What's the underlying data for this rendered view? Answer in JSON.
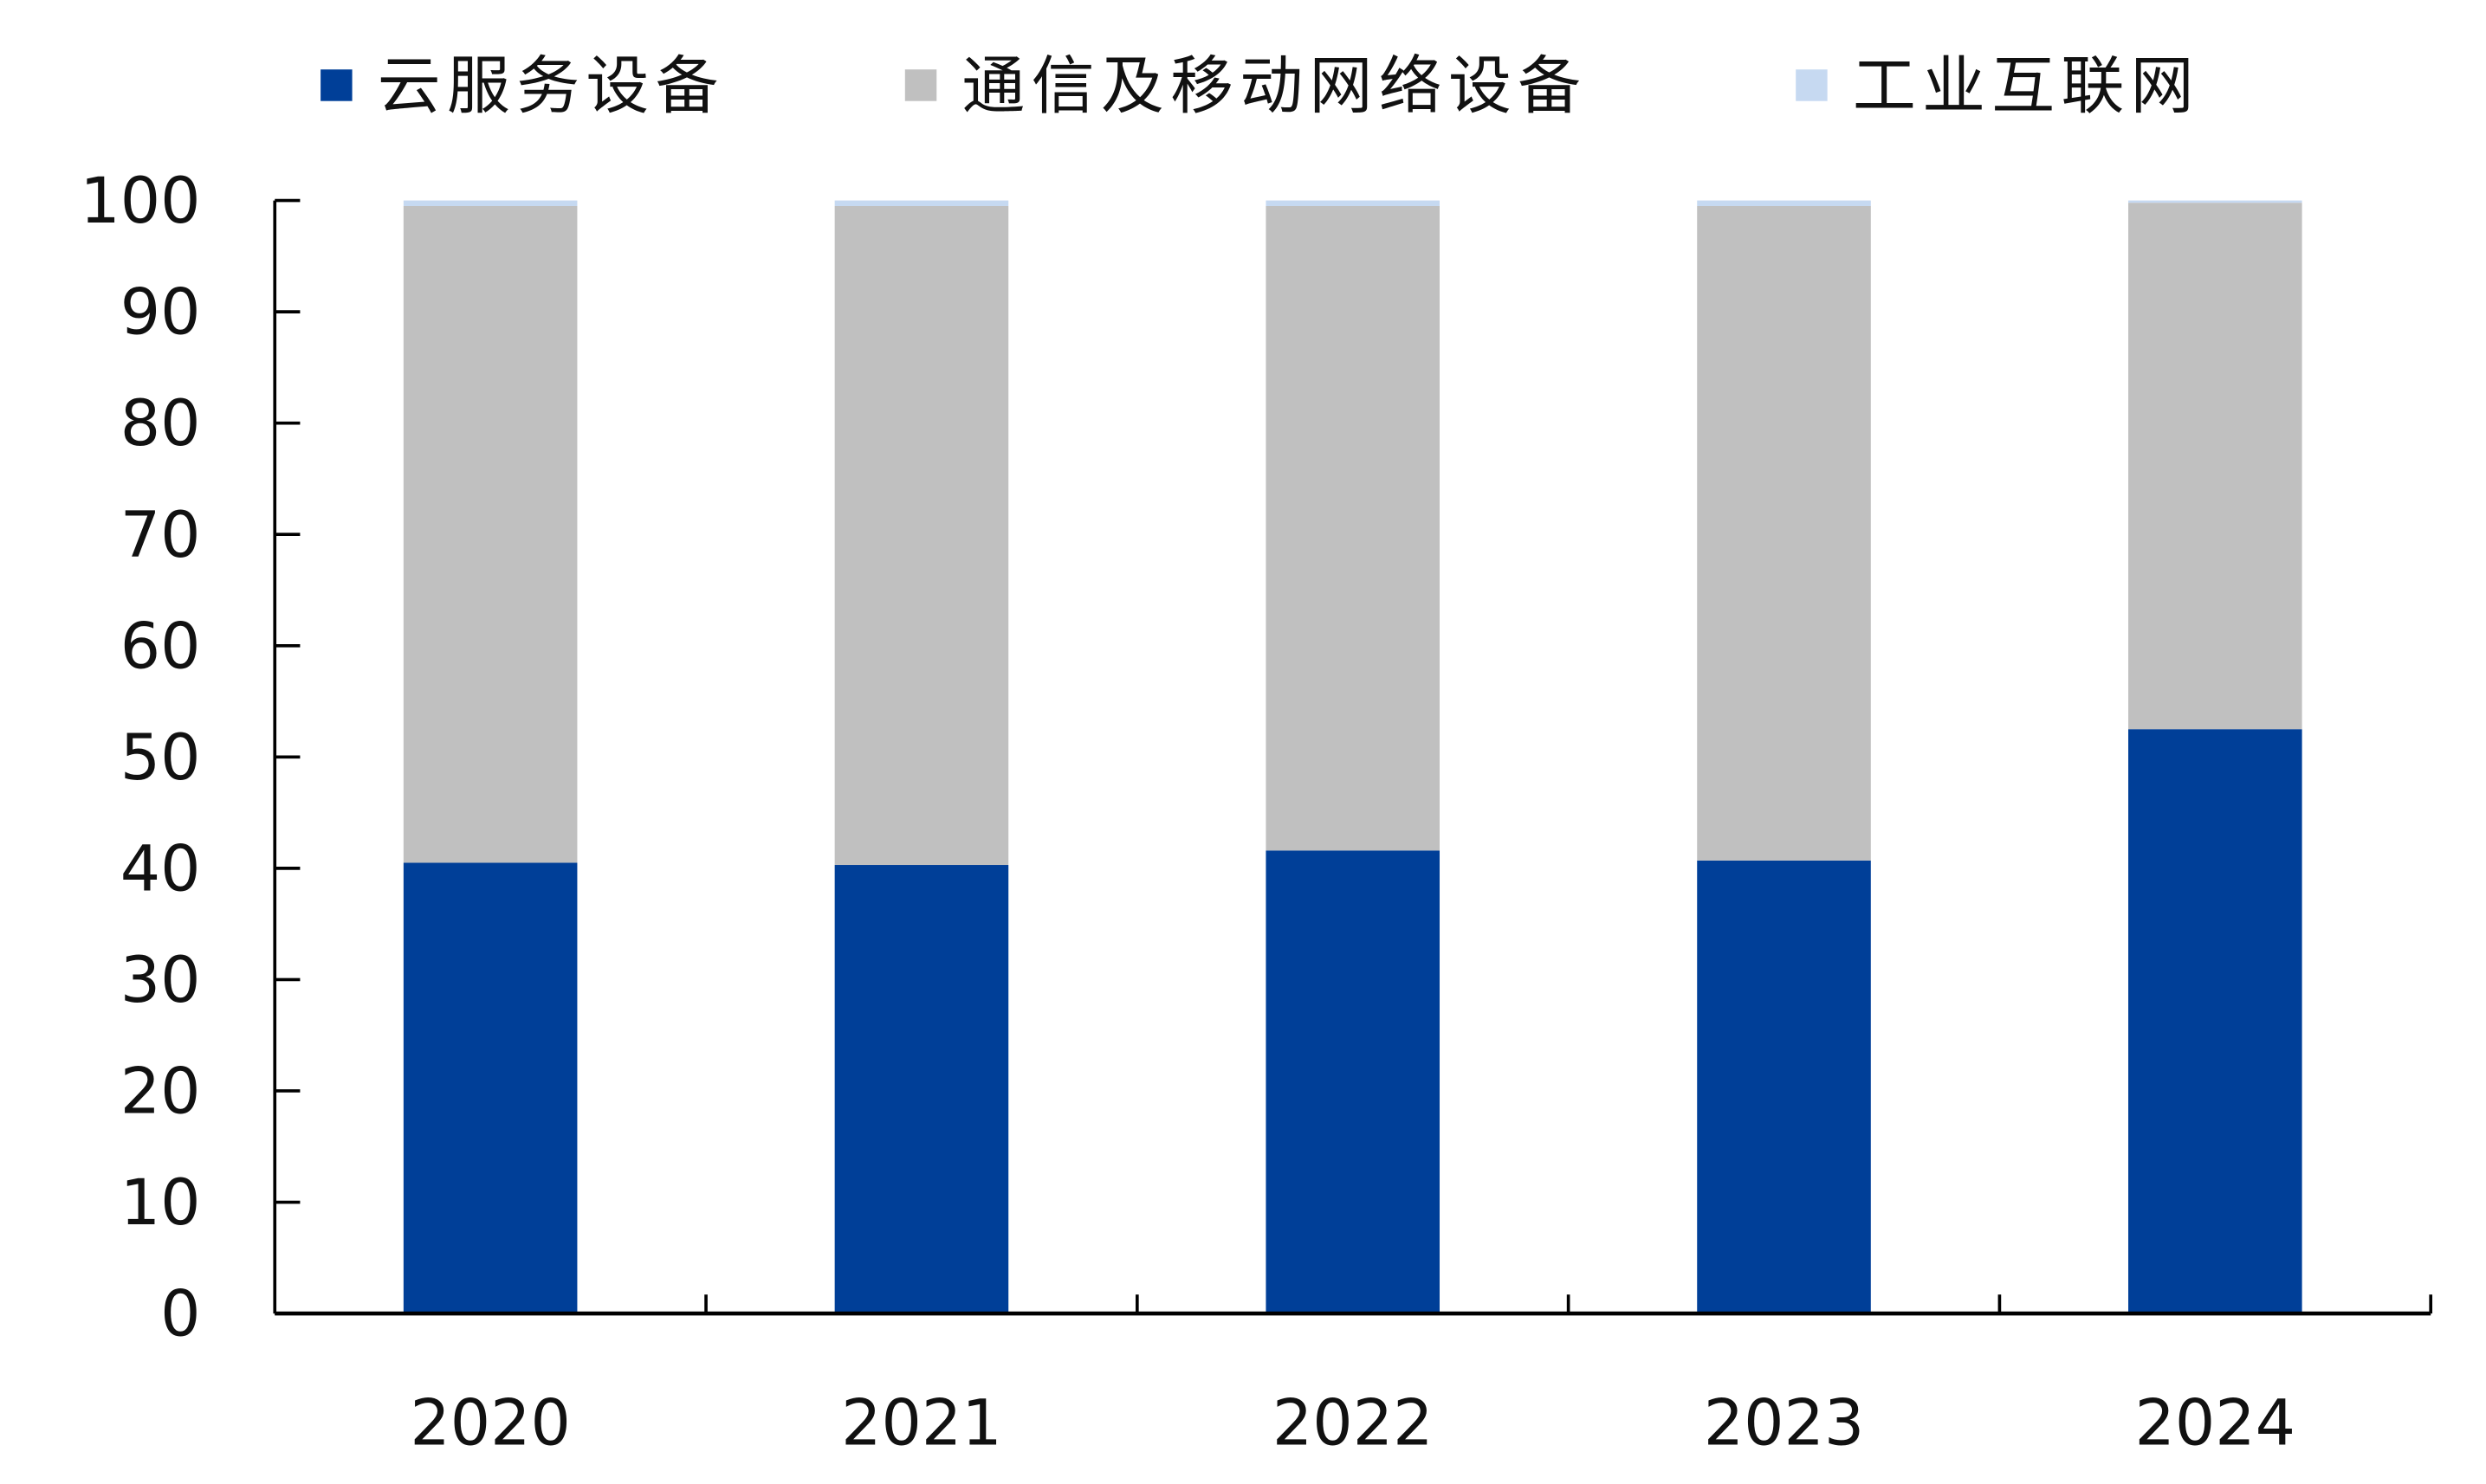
{
  "chart_data": {
    "type": "bar",
    "stacked": true,
    "categories": [
      "2020",
      "2021",
      "2022",
      "2023",
      "2024"
    ],
    "series": [
      {
        "name": "云服务设备",
        "color": "#003f98",
        "values": [
          40.5,
          40.3,
          41.6,
          40.7,
          52.5
        ]
      },
      {
        "name": "通信及移动网络设备",
        "color": "#c0c0c0",
        "values": [
          59.0,
          59.2,
          57.9,
          58.8,
          47.3
        ]
      },
      {
        "name": "工业互联网",
        "color": "#c6d9f1",
        "values": [
          0.5,
          0.5,
          0.5,
          0.5,
          0.2
        ]
      }
    ],
    "ylim": [
      0,
      100
    ],
    "yticks": [
      0,
      10,
      20,
      30,
      40,
      50,
      60,
      70,
      80,
      90,
      100
    ],
    "grid": false,
    "legend": "top"
  }
}
